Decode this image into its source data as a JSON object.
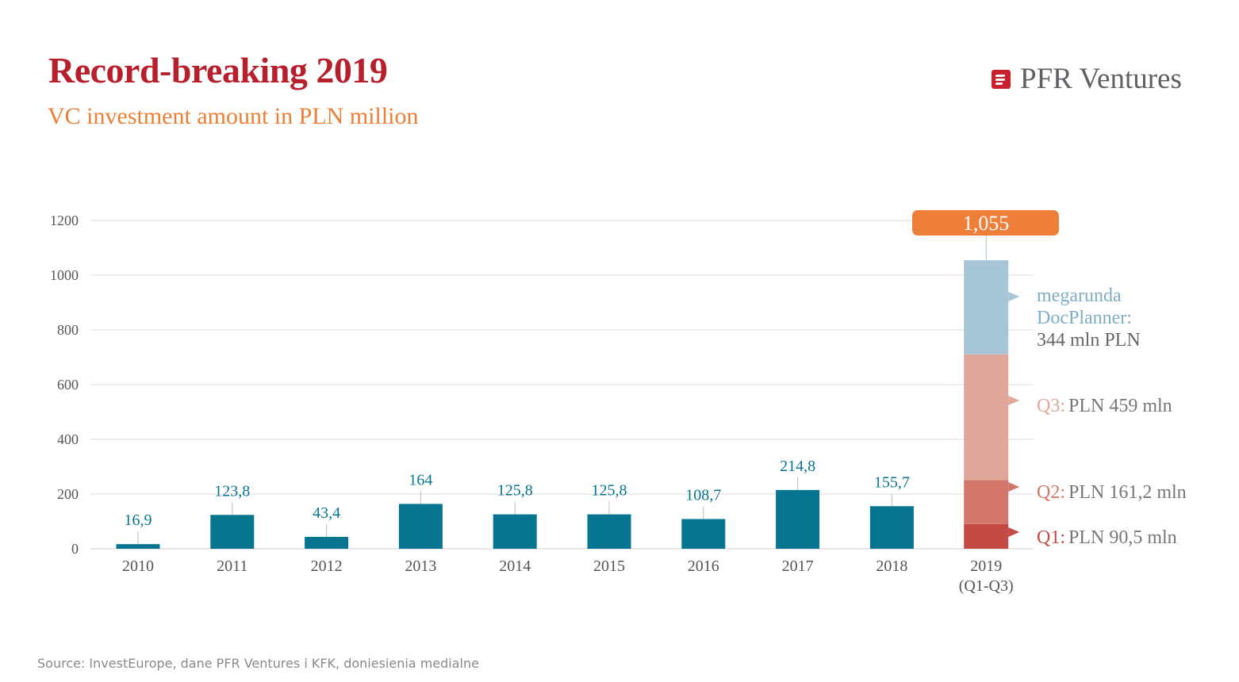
{
  "header": {
    "title": "Record-breaking 2019",
    "subtitle": "VC investment amount in PLN million",
    "logo_text": "PFR Ventures"
  },
  "source": "Source: InvestEurope, dane PFR Ventures i KFK, doniesienia medialne",
  "chart_data": {
    "type": "bar",
    "title": "Record-breaking 2019",
    "subtitle": "VC investment amount in PLN million",
    "ylim": [
      0,
      1200
    ],
    "yticks": [
      0,
      200,
      400,
      600,
      800,
      1000,
      1200
    ],
    "grid": true,
    "categories": [
      "2010",
      "2011",
      "2012",
      "2013",
      "2014",
      "2015",
      "2016",
      "2017",
      "2018",
      "2019\n(Q1-Q3)"
    ],
    "category_lines": [
      [
        "2010"
      ],
      [
        "2011"
      ],
      [
        "2012"
      ],
      [
        "2013"
      ],
      [
        "2014"
      ],
      [
        "2015"
      ],
      [
        "2016"
      ],
      [
        "2017"
      ],
      [
        "2018"
      ],
      [
        "2019",
        "(Q1-Q3)"
      ]
    ],
    "values": [
      16.9,
      123.8,
      43.4,
      164,
      125.8,
      125.8,
      108.7,
      214.8,
      155.7,
      null
    ],
    "value_labels": [
      "16,9",
      "123,8",
      "43,4",
      "164",
      "125,8",
      "125,8",
      "108,7",
      "214,8",
      "155,7",
      ""
    ],
    "bar_color": "#087590",
    "stacked_2019": {
      "total": 1055,
      "total_label": "1,055",
      "total_color": "#ee7f38",
      "segments": [
        {
          "prefix": "Q1:",
          "label": "PLN 90,5 mln",
          "value": 90.5,
          "color": "#c44a45",
          "prefix_color": "#c44a45"
        },
        {
          "prefix": "Q2:",
          "label": "PLN 161,2 mln",
          "value": 161.2,
          "color": "#d3776c",
          "prefix_color": "#d3776c"
        },
        {
          "prefix": "Q3:",
          "label": "PLN 459 mln",
          "value": 459,
          "color": "#e0a79b",
          "prefix_color": "#e0a79b"
        },
        {
          "prefix": "megarunda DocPlanner:",
          "prefix_lines": [
            "megarunda",
            "DocPlanner:"
          ],
          "label": "344 mln PLN",
          "value": 344,
          "color": "#a6c5d6",
          "prefix_color": "#7eaec6"
        }
      ]
    }
  }
}
